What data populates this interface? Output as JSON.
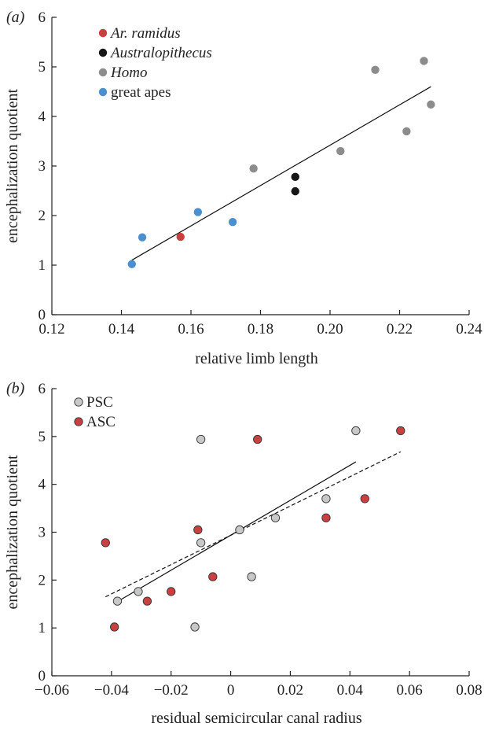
{
  "chart_data": [
    {
      "type": "scatter",
      "panel_label": "(a)",
      "title": "",
      "xlabel": "relative limb length",
      "ylabel": "encephalization quotient",
      "xlim": [
        0.12,
        0.24
      ],
      "ylim": [
        0,
        6
      ],
      "x_ticks": [
        "0.12",
        "0.14",
        "0.16",
        "0.18",
        "0.20",
        "0.22",
        "0.24"
      ],
      "y_ticks": [
        "0",
        "1",
        "2",
        "3",
        "4",
        "5",
        "6"
      ],
      "legend_position": "top-left",
      "series": [
        {
          "name": "Ar. ramidus",
          "italic": true,
          "color": "#c94040",
          "points": [
            [
              0.157,
              1.57
            ]
          ]
        },
        {
          "name": "Australopithecus",
          "italic": true,
          "color": "#161616",
          "points": [
            [
              0.19,
              2.78
            ],
            [
              0.19,
              2.49
            ]
          ]
        },
        {
          "name": "Homo",
          "italic": true,
          "color": "#8c8c8c",
          "points": [
            [
              0.178,
              2.95
            ],
            [
              0.203,
              3.3
            ],
            [
              0.213,
              4.94
            ],
            [
              0.222,
              3.7
            ],
            [
              0.227,
              5.12
            ],
            [
              0.229,
              4.24
            ]
          ]
        },
        {
          "name": "great apes",
          "italic": false,
          "color": "#4a90d0",
          "points": [
            [
              0.143,
              1.02
            ],
            [
              0.146,
              1.56
            ],
            [
              0.162,
              2.07
            ],
            [
              0.172,
              1.87
            ]
          ]
        }
      ],
      "fit_lines": [
        {
          "style": "solid",
          "color": "#111111",
          "x": [
            0.143,
            0.229
          ],
          "y": [
            1.1,
            4.6
          ]
        }
      ]
    },
    {
      "type": "scatter",
      "panel_label": "(b)",
      "title": "",
      "xlabel": "residual semicircular canal radius",
      "ylabel": "encephalization quotient",
      "xlim": [
        -0.06,
        0.08
      ],
      "ylim": [
        0,
        6
      ],
      "x_ticks": [
        "−0.06",
        "−0.04",
        "−0.02",
        "0",
        "0.02",
        "0.04",
        "0.06",
        "0.08"
      ],
      "y_ticks": [
        "0",
        "1",
        "2",
        "3",
        "4",
        "5",
        "6"
      ],
      "legend_position": "top-left",
      "series": [
        {
          "name": "PSC",
          "italic": false,
          "color": "#c8c8c8",
          "points": [
            [
              -0.038,
              1.56
            ],
            [
              -0.031,
              1.76
            ],
            [
              -0.012,
              1.02
            ],
            [
              -0.01,
              2.78
            ],
            [
              -0.01,
              4.94
            ],
            [
              0.003,
              3.05
            ],
            [
              0.007,
              2.07
            ],
            [
              0.015,
              3.3
            ],
            [
              0.032,
              3.7
            ],
            [
              0.042,
              5.12
            ]
          ]
        },
        {
          "name": "ASC",
          "italic": false,
          "color": "#c94040",
          "points": [
            [
              -0.042,
              2.78
            ],
            [
              -0.039,
              1.02
            ],
            [
              -0.028,
              1.56
            ],
            [
              -0.02,
              1.76
            ],
            [
              -0.011,
              3.05
            ],
            [
              -0.006,
              2.07
            ],
            [
              0.009,
              4.94
            ],
            [
              0.032,
              3.3
            ],
            [
              0.045,
              3.7
            ],
            [
              0.057,
              5.12
            ]
          ]
        }
      ],
      "fit_lines": [
        {
          "style": "solid",
          "color": "#111111",
          "x": [
            -0.038,
            0.042
          ],
          "y": [
            1.55,
            4.47
          ]
        },
        {
          "style": "dashed",
          "color": "#111111",
          "x": [
            -0.042,
            0.057
          ],
          "y": [
            1.65,
            4.68
          ]
        }
      ]
    }
  ]
}
